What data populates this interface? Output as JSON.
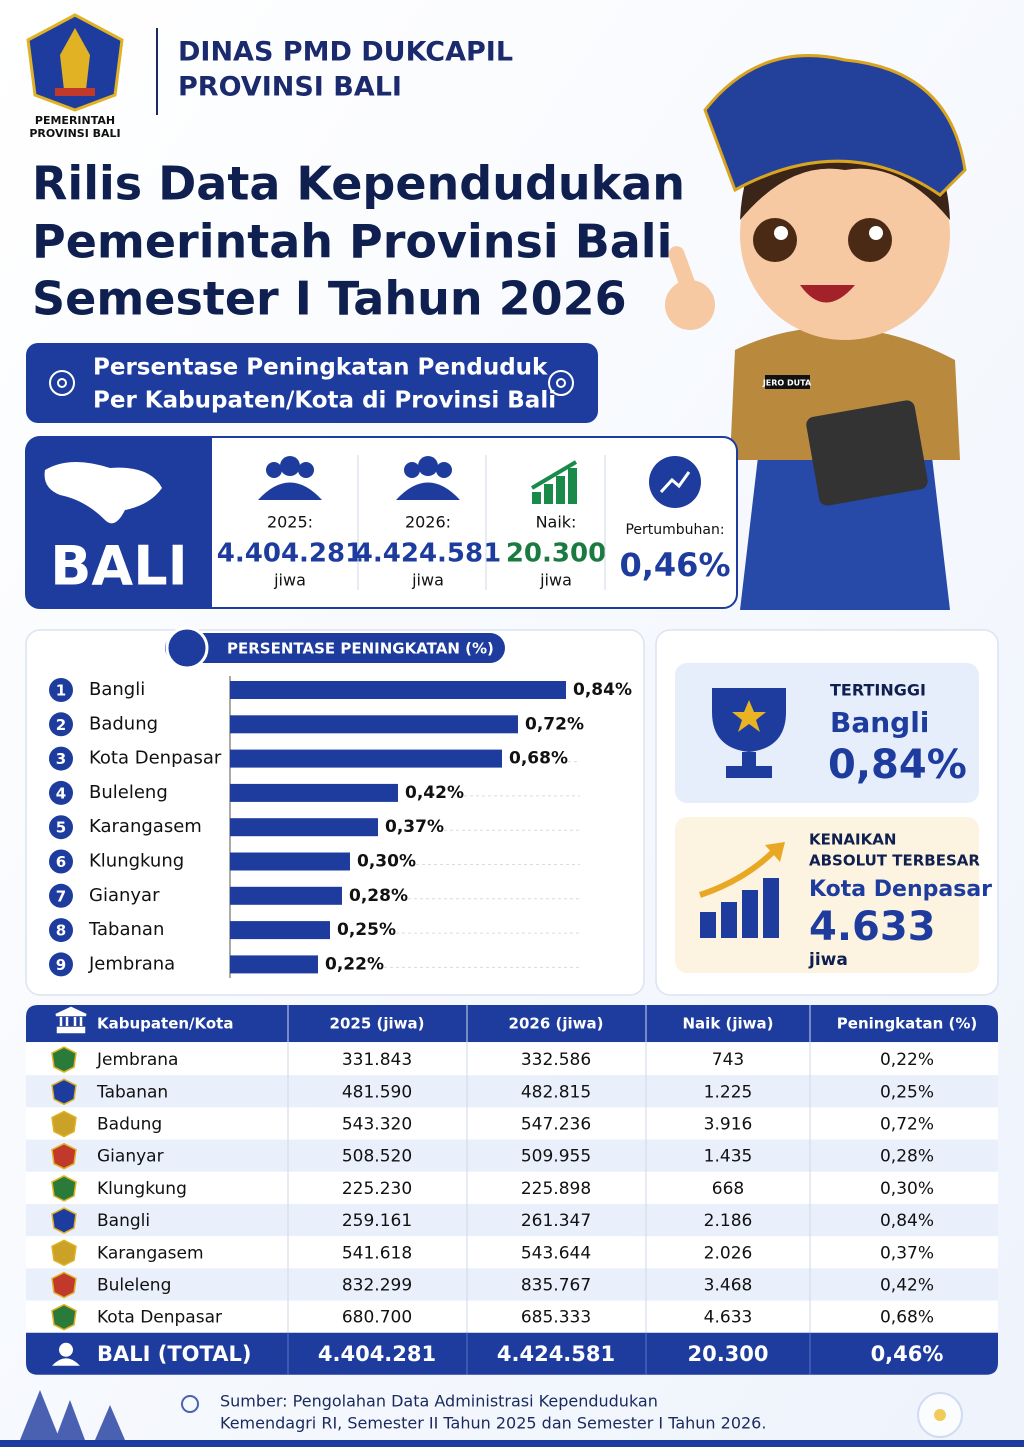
{
  "header": {
    "agency": [
      "DINAS PMD DUKCAPIL",
      "PROVINSI BALI"
    ],
    "logo_caption": [
      "PEMERINTAH",
      "PROVINSI BALI"
    ]
  },
  "title": [
    "Rilis Data Kependudukan",
    "Pemerintah Provinsi Bali",
    "Semester I Tahun 2026"
  ],
  "banner": [
    "Persentase Peningkatan Penduduk",
    "Per Kabupaten/Kota di Provinsi Bali"
  ],
  "summary": {
    "region": "BALI",
    "stats": [
      {
        "label": "2025:",
        "value": "4.404.281",
        "unit": "jiwa"
      },
      {
        "label": "2026:",
        "value": "4.424.581",
        "unit": "jiwa"
      },
      {
        "label": "Naik:",
        "value": "20.300",
        "unit": "jiwa"
      },
      {
        "label": "Pertumbuhan:",
        "value": "0,46%"
      }
    ]
  },
  "chart_data": {
    "type": "bar",
    "orientation": "horizontal",
    "title": "PERSENTASE PENINGKATAN (%)",
    "ranks": [
      1,
      2,
      3,
      4,
      5,
      6,
      7,
      8,
      9
    ],
    "categories": [
      "Bangli",
      "Badung",
      "Kota Denpasar",
      "Buleleng",
      "Karangasem",
      "Klungkung",
      "Gianyar",
      "Tabanan",
      "Jembrana"
    ],
    "values": [
      0.84,
      0.72,
      0.68,
      0.42,
      0.37,
      0.3,
      0.28,
      0.25,
      0.22
    ],
    "value_labels": [
      "0,84%",
      "0,72%",
      "0,68%",
      "0,42%",
      "0,37%",
      "0,30%",
      "0,28%",
      "0,25%",
      "0,22%"
    ],
    "color": "#1e3c9e",
    "xlim": [
      0,
      1
    ]
  },
  "highlights": {
    "highest": {
      "label": "TERTINGGI",
      "name": "Bangli",
      "value": "0,84%"
    },
    "largest_absolute": {
      "label": [
        "KENAIKAN",
        "ABSOLUT TERBESAR"
      ],
      "name": "Kota Denpasar",
      "value": "4.633",
      "unit": "jiwa"
    }
  },
  "table": {
    "columns": [
      "Kabupaten/Kota",
      "2025 (jiwa)",
      "2026 (jiwa)",
      "Naik (jiwa)",
      "Peningkatan (%)"
    ],
    "rows": [
      [
        "Jembrana",
        "331.843",
        "332.586",
        "743",
        "0,22%"
      ],
      [
        "Tabanan",
        "481.590",
        "482.815",
        "1.225",
        "0,25%"
      ],
      [
        "Badung",
        "543.320",
        "547.236",
        "3.916",
        "0,72%"
      ],
      [
        "Gianyar",
        "508.520",
        "509.955",
        "1.435",
        "0,28%"
      ],
      [
        "Klungkung",
        "225.230",
        "225.898",
        "668",
        "0,30%"
      ],
      [
        "Bangli",
        "259.161",
        "261.347",
        "2.186",
        "0,84%"
      ],
      [
        "Karangasem",
        "541.618",
        "543.644",
        "2.026",
        "0,37%"
      ],
      [
        "Buleleng",
        "832.299",
        "835.767",
        "3.468",
        "0,42%"
      ],
      [
        "Kota Denpasar",
        "680.700",
        "685.333",
        "4.633",
        "0,68%"
      ]
    ],
    "total": [
      "BALI (TOTAL)",
      "4.404.281",
      "4.424.581",
      "20.300",
      "0,46%"
    ]
  },
  "mascot_badge": "JERO DUTA",
  "source": [
    "Sumber: Pengolahan Data Administrasi Kependudukan",
    "Kemendagri RI, Semester II Tahun 2025 dan Semester I Tahun 2026."
  ]
}
